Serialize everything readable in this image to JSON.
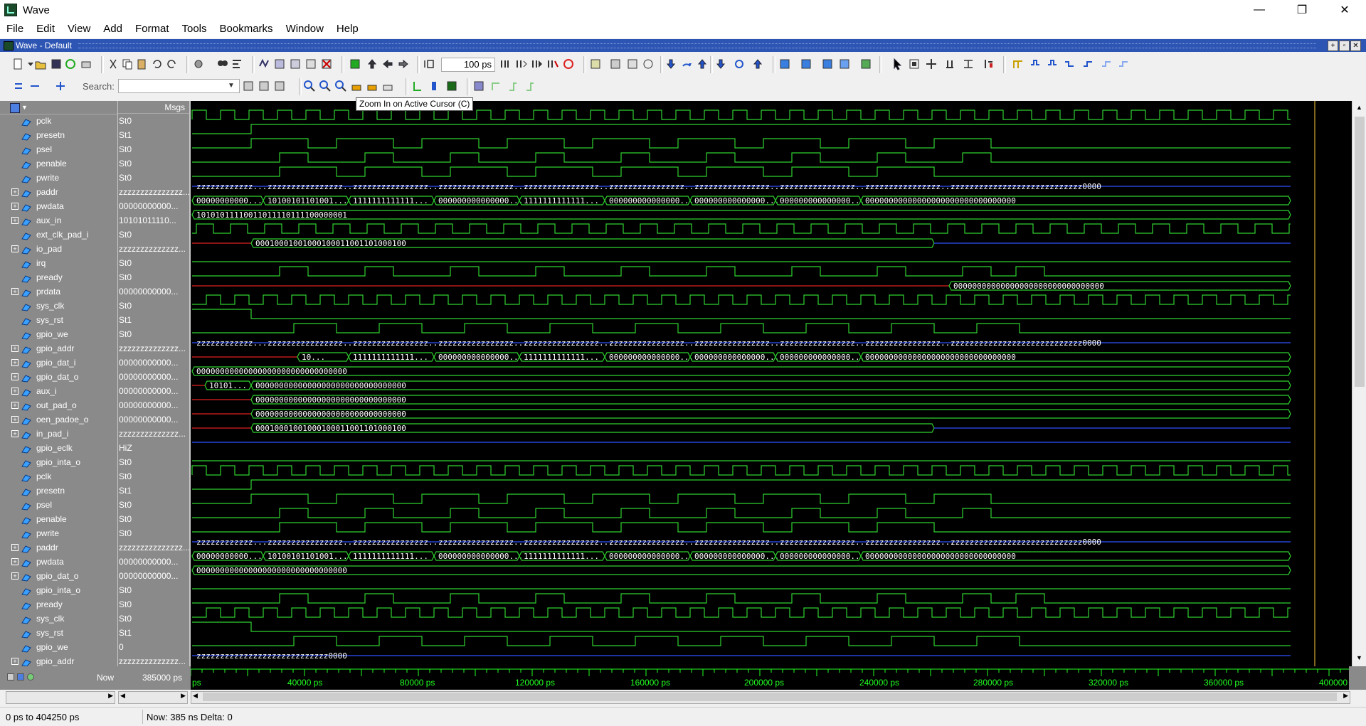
{
  "window": {
    "title": "Wave",
    "minimize": "—",
    "maximize": "❐",
    "close": "✕"
  },
  "menu": [
    "File",
    "Edit",
    "View",
    "Add",
    "Format",
    "Tools",
    "Bookmarks",
    "Window",
    "Help"
  ],
  "subwindow": {
    "title": "Wave - Default"
  },
  "toolbar": {
    "zoom_value": "100 ps",
    "search_label": "Search:",
    "search_value": ""
  },
  "tooltip": "Zoom In on Active Cursor (C)",
  "pane": {
    "msgs_header": "Msgs"
  },
  "signals": [
    {
      "name": "pclk",
      "value": "St0",
      "bus": false
    },
    {
      "name": "presetn",
      "value": "St1",
      "bus": false
    },
    {
      "name": "psel",
      "value": "St0",
      "bus": false
    },
    {
      "name": "penable",
      "value": "St0",
      "bus": false
    },
    {
      "name": "pwrite",
      "value": "St0",
      "bus": false
    },
    {
      "name": "paddr",
      "value": "zzzzzzzzzzzzzzz...",
      "bus": true
    },
    {
      "name": "pwdata",
      "value": "00000000000...",
      "bus": true
    },
    {
      "name": "aux_in",
      "value": "10101011110...",
      "bus": true
    },
    {
      "name": "ext_clk_pad_i",
      "value": "St0",
      "bus": false
    },
    {
      "name": "io_pad",
      "value": "zzzzzzzzzzzzzz...",
      "bus": true
    },
    {
      "name": "irq",
      "value": "St0",
      "bus": false
    },
    {
      "name": "pready",
      "value": "St0",
      "bus": false
    },
    {
      "name": "prdata",
      "value": "00000000000...",
      "bus": true
    },
    {
      "name": "sys_clk",
      "value": "St0",
      "bus": false
    },
    {
      "name": "sys_rst",
      "value": "St1",
      "bus": false
    },
    {
      "name": "gpio_we",
      "value": "St0",
      "bus": false
    },
    {
      "name": "gpio_addr",
      "value": "zzzzzzzzzzzzzz...",
      "bus": true
    },
    {
      "name": "gpio_dat_i",
      "value": "00000000000...",
      "bus": true
    },
    {
      "name": "gpio_dat_o",
      "value": "00000000000...",
      "bus": true
    },
    {
      "name": "aux_i",
      "value": "00000000000...",
      "bus": true
    },
    {
      "name": "out_pad_o",
      "value": "00000000000...",
      "bus": true
    },
    {
      "name": "oen_padoe_o",
      "value": "00000000000...",
      "bus": true
    },
    {
      "name": "in_pad_i",
      "value": "zzzzzzzzzzzzzz...",
      "bus": true
    },
    {
      "name": "gpio_eclk",
      "value": "HiZ",
      "bus": false
    },
    {
      "name": "gpio_inta_o",
      "value": "St0",
      "bus": false
    },
    {
      "name": "pclk",
      "value": "St0",
      "bus": false
    },
    {
      "name": "presetn",
      "value": "St1",
      "bus": false
    },
    {
      "name": "psel",
      "value": "St0",
      "bus": false
    },
    {
      "name": "penable",
      "value": "St0",
      "bus": false
    },
    {
      "name": "pwrite",
      "value": "St0",
      "bus": false
    },
    {
      "name": "paddr",
      "value": "zzzzzzzzzzzzzzz...",
      "bus": true
    },
    {
      "name": "pwdata",
      "value": "00000000000...",
      "bus": true
    },
    {
      "name": "gpio_dat_o",
      "value": "00000000000...",
      "bus": true
    },
    {
      "name": "gpio_inta_o",
      "value": "St0",
      "bus": false
    },
    {
      "name": "pready",
      "value": "St0",
      "bus": false
    },
    {
      "name": "sys_clk",
      "value": "St0",
      "bus": false
    },
    {
      "name": "sys_rst",
      "value": "St1",
      "bus": false
    },
    {
      "name": "gpio_we",
      "value": "0",
      "bus": false
    },
    {
      "name": "gpio_addr",
      "value": "zzzzzzzzzzzzzz...",
      "bus": true
    }
  ],
  "bus_labels": {
    "paddr": [
      "zzzzzzzzzzzz...",
      "zzzzzzzzzzzzzzzz...",
      "zzzzzzzzzzzzzzzz...",
      "zzzzzzzzzzzzzzzz...",
      "zzzzzzzzzzzzzzzz...",
      "zzzzzzzzzzzzzzzz...",
      "zzzzzzzzzzzzzzzz...",
      "zzzzzzzzzzzzzzzz...",
      "zzzzzzzzzzzzzzzz...",
      "zzzzzzzzzzzzzzzzzzzzzzzzzzzz0000"
    ],
    "pwdata": [
      "00000000000...",
      "10100101101001...",
      "1111111111111...",
      "000000000000000...",
      "1111111111111...",
      "000000000000000...",
      "000000000000000...",
      "000000000000000...",
      "00000000000000000000000000000000"
    ],
    "aux_in": "10101011110011011110111100000001",
    "io_pad": "00010001001000100011001101000100",
    "prdata": "00000000000000000000000000000000",
    "gpio_addr": [
      "zzzzzzzzzzzz...",
      "zzzzzzzzzzzzzzzz...",
      "zzzzzzzzzzzzzzzz...",
      "zzzzzzzzzzzzzzzz...",
      "zzzzzzzzzzzzzzzz...",
      "zzzzzzzzzzzzzzzz...",
      "zzzzzzzzzzzzzzzz...",
      "zzzzzzzzzzzzzzzz...",
      "zzzzzzzzzzzzzzzz...",
      "zzzzzzzzzzzzzzzzzzzzzzzzzzzz0000"
    ],
    "gpio_dat_i": [
      "10...",
      "1111111111111...",
      "000000000000000...",
      "1111111111111...",
      "000000000000000...",
      "000000000000000...",
      "000000000000000...",
      "00000000000000000000000000000000"
    ],
    "gpio_dat_o": "00000000000000000000000000000000",
    "aux_i": [
      "10101...",
      "00000000000000000000000000000000"
    ],
    "out_pad_o": "00000000000000000000000000000000",
    "oen_padoe_o": "00000000000000000000000000000000",
    "in_pad_i": "00010001001000100011001101000100",
    "gpio_addr2": "zzzzzzzzzzzzzzzzzzzzzzzzzzzz0000"
  },
  "cursor": {
    "now_label": "Now",
    "now_value": "385000 ps"
  },
  "timeline": [
    "ps",
    "40000 ps",
    "80000 ps",
    "120000 ps",
    "160000 ps",
    "200000 ps",
    "240000 ps",
    "280000 ps",
    "320000 ps",
    "360000 ps",
    "400000"
  ],
  "status": {
    "range": "0 ps to 404250 ps",
    "now": "Now: 385 ns   Delta: 0"
  },
  "colors": {
    "wave": "#2fd12f",
    "bus_z": "#3050ff",
    "undef": "#e02020",
    "pane": "#8a8a8a",
    "titlebar": "#2d55b3"
  }
}
